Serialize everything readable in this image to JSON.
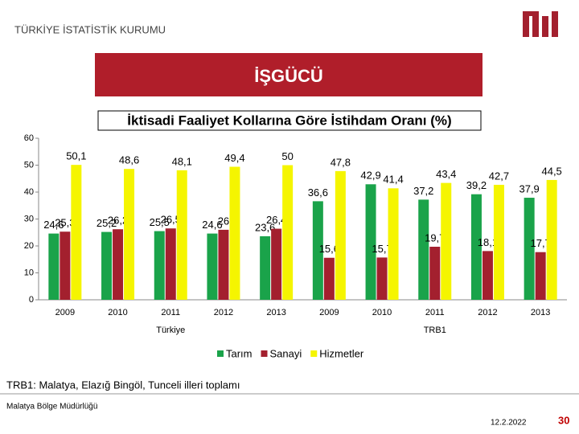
{
  "header": {
    "org": "TÜRKİYE İSTATİSTİK KURUMU",
    "banner": "İŞGÜCÜ"
  },
  "chart_data": {
    "type": "bar",
    "title": "İktisadi Faaliyet Kollarına Göre İstihdam Oranı (%)",
    "categories": [
      "2009",
      "2010",
      "2011",
      "2012",
      "2013",
      "2009",
      "2010",
      "2011",
      "2012",
      "2013"
    ],
    "groups": [
      "Türkiye",
      "TRB1"
    ],
    "series": [
      {
        "name": "Tarım",
        "color": "#1aa34a",
        "values": [
          24.6,
          25.2,
          25.5,
          24.6,
          23.6,
          36.6,
          42.9,
          37.2,
          39.2,
          37.9
        ],
        "value_labels": [
          "24,6",
          "25,2",
          "25,5",
          "24,6",
          "23,6",
          "36,6",
          "42,9",
          "37,2",
          "39,2",
          "37,9"
        ]
      },
      {
        "name": "Sanayi",
        "color": "#a3202e",
        "values": [
          25.3,
          26.2,
          26.5,
          26,
          26.4,
          15.6,
          15.7,
          19.7,
          18.1,
          17.7
        ],
        "value_labels": [
          "25,3",
          "26,2",
          "26,5",
          "26",
          "26,4",
          "15,6",
          "15,7",
          "19,7",
          "18,1",
          "17,7"
        ]
      },
      {
        "name": "Hizmetler",
        "color": "#f5f500",
        "values": [
          50.1,
          48.6,
          48.1,
          49.4,
          50,
          47.8,
          41.4,
          43.4,
          42.7,
          44.5
        ],
        "value_labels": [
          "50,1",
          "48,6",
          "48,1",
          "49,4",
          "50",
          "47,8",
          "41,4",
          "43,4",
          "42,7",
          "44,5"
        ]
      }
    ],
    "ylim": [
      0,
      60
    ],
    "yticks": [
      0,
      10,
      20,
      30,
      40,
      50,
      60
    ],
    "legend": "bottom"
  },
  "note": "TRB1: Malatya, Elazığ Bingöl, Tunceli illeri toplamı",
  "footer": {
    "office": "Malatya Bölge Müdürlüğü",
    "date": "12.2.2022",
    "page": "30"
  }
}
